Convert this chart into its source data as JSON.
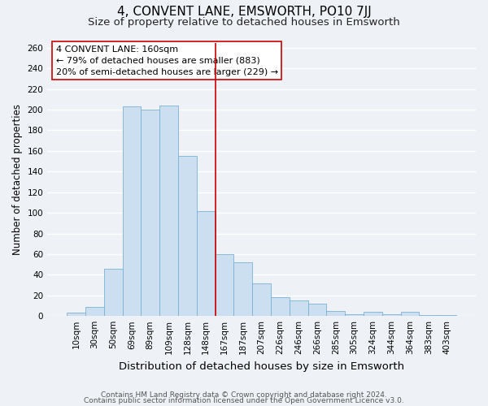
{
  "title": "4, CONVENT LANE, EMSWORTH, PO10 7JJ",
  "subtitle": "Size of property relative to detached houses in Emsworth",
  "xlabel": "Distribution of detached houses by size in Emsworth",
  "ylabel": "Number of detached properties",
  "bar_labels": [
    "10sqm",
    "30sqm",
    "50sqm",
    "69sqm",
    "89sqm",
    "109sqm",
    "128sqm",
    "148sqm",
    "167sqm",
    "187sqm",
    "207sqm",
    "226sqm",
    "246sqm",
    "266sqm",
    "285sqm",
    "305sqm",
    "324sqm",
    "344sqm",
    "364sqm",
    "383sqm",
    "403sqm"
  ],
  "bar_values": [
    3,
    9,
    46,
    203,
    200,
    204,
    155,
    102,
    60,
    52,
    32,
    18,
    15,
    12,
    5,
    2,
    4,
    2,
    4,
    1,
    1
  ],
  "bar_color": "#ccdff0",
  "bar_edge_color": "#7ab0d4",
  "vline_x_index": 8,
  "vline_color": "#cc0000",
  "annotation_title": "4 CONVENT LANE: 160sqm",
  "annotation_line1": "← 79% of detached houses are smaller (883)",
  "annotation_line2": "20% of semi-detached houses are larger (229) →",
  "annotation_box_color": "#ffffff",
  "annotation_box_edge": "#cc0000",
  "ylim": [
    0,
    265
  ],
  "yticks": [
    0,
    20,
    40,
    60,
    80,
    100,
    120,
    140,
    160,
    180,
    200,
    220,
    240,
    260
  ],
  "footer1": "Contains HM Land Registry data © Crown copyright and database right 2024.",
  "footer2": "Contains public sector information licensed under the Open Government Licence v3.0.",
  "background_color": "#eef2f7",
  "grid_color": "#ffffff",
  "title_fontsize": 11,
  "subtitle_fontsize": 9.5,
  "xlabel_fontsize": 9.5,
  "ylabel_fontsize": 8.5,
  "tick_fontsize": 7.5,
  "annotation_title_fontsize": 8.5,
  "annotation_body_fontsize": 8,
  "footer_fontsize": 6.5
}
